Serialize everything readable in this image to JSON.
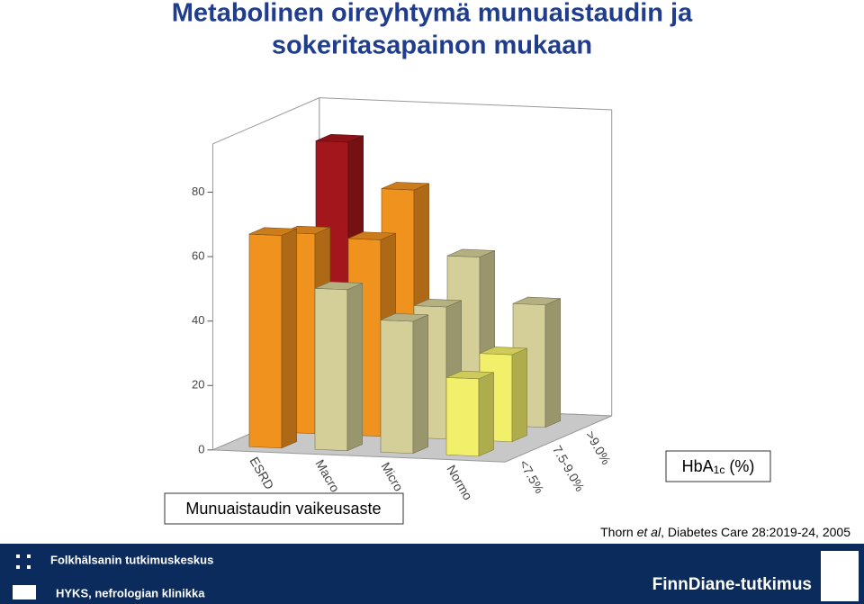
{
  "chart_data": {
    "type": "bar3d",
    "title": [
      "Metabolinen oireyhtymä munuaistaudin ja",
      "sokeritasapainon mukaan"
    ],
    "categories": [
      "ESRD",
      "Macro",
      "Micro",
      "Normo"
    ],
    "series": [
      {
        "name": "<7.5%",
        "values": [
          66,
          50,
          41,
          24
        ],
        "colors": [
          "#f0921e",
          "#d4cf98",
          "#d4cf98",
          "#f2ef6a"
        ]
      },
      {
        "name": "7.5-9.0%",
        "values": [
          62,
          61,
          41,
          27
        ],
        "colors": [
          "#f0921e",
          "#f0921e",
          "#d4cf98",
          "#f2ef6a"
        ]
      },
      {
        "name": ">9.0%",
        "values": [
          86,
          72,
          52,
          38
        ],
        "colors": [
          "#a3161b",
          "#f0921e",
          "#d4cf98",
          "#d4cf98"
        ]
      }
    ],
    "ylim": [
      0,
      95
    ],
    "yticks": [
      0,
      20,
      40,
      60,
      80
    ],
    "x_label": "Munuaistaudin vaikeusaste",
    "depth_label": {
      "main": "HbA",
      "sub": "1c",
      "rest": " (%)"
    },
    "citation": {
      "before": "Thorn ",
      "italic": "et al",
      "after": ", Diabetes Care 28:2019-24, 2005"
    },
    "footer": {
      "left_top": "Folkhälsanin tutkimuskeskus",
      "left_bottom": "HYKS, nefrologian klinikka",
      "right": "FinnDiane-tutkimus"
    }
  }
}
